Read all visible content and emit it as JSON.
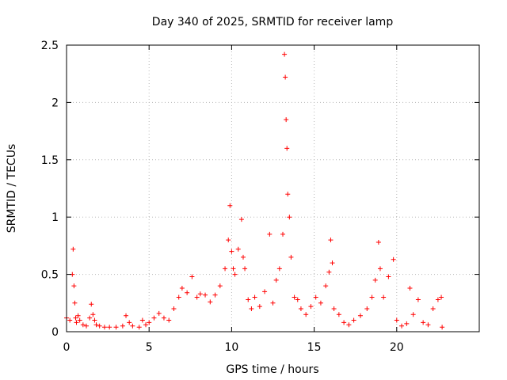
{
  "chart_data": {
    "type": "scatter",
    "title": "Day 340 of 2025, SRMTID for receiver lamp",
    "xlabel": "GPS time / hours",
    "ylabel": "SRMTID / TECUs",
    "xlim": [
      0,
      25
    ],
    "ylim": [
      0,
      2.5
    ],
    "xticks": [
      0,
      5,
      10,
      15,
      20
    ],
    "yticks": [
      0,
      0.5,
      1,
      1.5,
      2,
      2.5
    ],
    "xtick_labels": [
      "0",
      "5",
      "10",
      "15",
      "20"
    ],
    "ytick_labels": [
      "0",
      "0.5",
      "1",
      "1.5",
      "2",
      "2.5"
    ],
    "grid": true,
    "color": "#ff0000",
    "marker": "plus",
    "series": [
      {
        "name": "SRMTID",
        "x": [
          0.0,
          0.2,
          0.35,
          0.4,
          0.45,
          0.5,
          0.55,
          0.6,
          0.7,
          0.8,
          1.0,
          1.2,
          1.4,
          1.5,
          1.6,
          1.7,
          1.8,
          2.0,
          2.3,
          2.6,
          3.0,
          3.4,
          3.6,
          3.8,
          4.0,
          4.4,
          4.6,
          4.8,
          5.0,
          5.3,
          5.6,
          5.9,
          6.2,
          6.5,
          6.8,
          7.0,
          7.3,
          7.6,
          7.9,
          8.1,
          8.4,
          8.7,
          9.0,
          9.3,
          9.6,
          9.8,
          9.9,
          10.0,
          10.1,
          10.2,
          10.4,
          10.6,
          10.7,
          10.8,
          11.0,
          11.2,
          11.4,
          11.7,
          12.0,
          12.3,
          12.5,
          12.7,
          12.9,
          13.1,
          13.2,
          13.25,
          13.3,
          13.35,
          13.4,
          13.5,
          13.6,
          13.8,
          14.0,
          14.2,
          14.5,
          14.8,
          15.1,
          15.4,
          15.7,
          15.9,
          16.0,
          16.1,
          16.2,
          16.5,
          16.8,
          17.1,
          17.4,
          17.8,
          18.2,
          18.5,
          18.7,
          18.9,
          19.0,
          19.2,
          19.5,
          19.8,
          20.0,
          20.3,
          20.6,
          20.8,
          21.0,
          21.3,
          21.6,
          21.9,
          22.2,
          22.5,
          22.7,
          22.75
        ],
        "y": [
          0.12,
          0.1,
          0.5,
          0.72,
          0.4,
          0.25,
          0.12,
          0.08,
          0.14,
          0.1,
          0.06,
          0.05,
          0.12,
          0.24,
          0.15,
          0.1,
          0.06,
          0.05,
          0.04,
          0.04,
          0.04,
          0.05,
          0.14,
          0.08,
          0.05,
          0.04,
          0.1,
          0.06,
          0.08,
          0.12,
          0.16,
          0.12,
          0.1,
          0.2,
          0.3,
          0.38,
          0.34,
          0.48,
          0.3,
          0.33,
          0.32,
          0.26,
          0.32,
          0.4,
          0.55,
          0.8,
          1.1,
          0.7,
          0.55,
          0.5,
          0.72,
          0.98,
          0.65,
          0.55,
          0.28,
          0.2,
          0.3,
          0.22,
          0.35,
          0.85,
          0.25,
          0.45,
          0.55,
          0.85,
          2.42,
          2.22,
          1.85,
          1.6,
          1.2,
          1.0,
          0.65,
          0.3,
          0.28,
          0.2,
          0.15,
          0.22,
          0.3,
          0.25,
          0.4,
          0.52,
          0.8,
          0.6,
          0.2,
          0.15,
          0.08,
          0.06,
          0.1,
          0.14,
          0.2,
          0.3,
          0.45,
          0.78,
          0.55,
          0.3,
          0.48,
          0.63,
          0.1,
          0.05,
          0.07,
          0.38,
          0.15,
          0.28,
          0.08,
          0.06,
          0.2,
          0.28,
          0.3,
          0.04
        ]
      }
    ]
  }
}
